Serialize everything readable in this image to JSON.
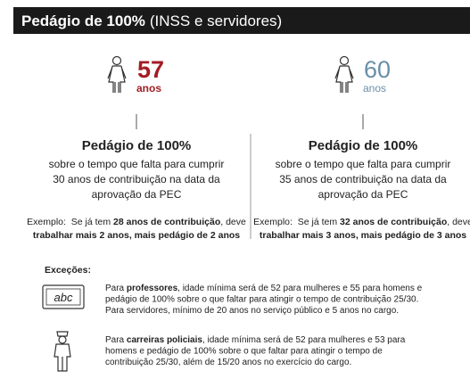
{
  "header": {
    "title_bold": "Pedágio de 100%",
    "title_rest": "(INSS e servidores)"
  },
  "columns": [
    {
      "age": "57",
      "age_unit": "anos",
      "heading": "Pedágio de 100%",
      "description": [
        "sobre o tempo que falta para cumprir",
        "30 anos de contribuição na data da",
        "aprovação da PEC"
      ],
      "example": [
        [
          {
            "text": "Exemplo:  Se já tem "
          },
          {
            "text": "28 anos de contribuição",
            "bold": true
          },
          {
            "text": ", deve"
          }
        ],
        [
          {
            "text": "trabalhar mais 2 anos, mais pedágio de 2 anos",
            "bold": true
          }
        ]
      ]
    },
    {
      "age": "60",
      "age_unit": "anos",
      "heading": "Pedágio de 100%",
      "description": [
        "sobre o tempo que falta para cumprir",
        "35 anos de contribuição na data da",
        "aprovação da PEC"
      ],
      "example": [
        [
          {
            "text": "Exemplo:  Se já tem "
          },
          {
            "text": "32 anos de contribuição",
            "bold": true
          },
          {
            "text": ", deve"
          }
        ],
        [
          {
            "text": "trabalhar mais 3 anos, mais pedágio de 3 anos",
            "bold": true
          }
        ]
      ]
    }
  ],
  "exceptions": {
    "title": "Exceções:",
    "items": [
      {
        "icon_text": "abc",
        "lines": [
          [
            {
              "text": "Para "
            },
            {
              "text": "professores",
              "bold": true
            },
            {
              "text": ", idade mínima será de 52 para mulheres e 55 para homens e"
            }
          ],
          [
            {
              "text": "pedágio de 100% sobre o que faltar para atingir o tempo de contribuição 25/30."
            }
          ],
          [
            {
              "text": "Para servidores, mínimo de 20 anos no serviço público e 5 anos no cargo."
            }
          ]
        ]
      },
      {
        "lines": [
          [
            {
              "text": "Para "
            },
            {
              "text": "carreiras policiais",
              "bold": true
            },
            {
              "text": ", idade mínima será de 52 para mulheres e 53 para"
            }
          ],
          [
            {
              "text": "homens e pedágio de 100% sobre o que faltar para atingir o tempo de"
            }
          ],
          [
            {
              "text": "contribuição 25/30, além de 15/20 anos no exercício do cargo."
            }
          ]
        ]
      }
    ]
  }
}
